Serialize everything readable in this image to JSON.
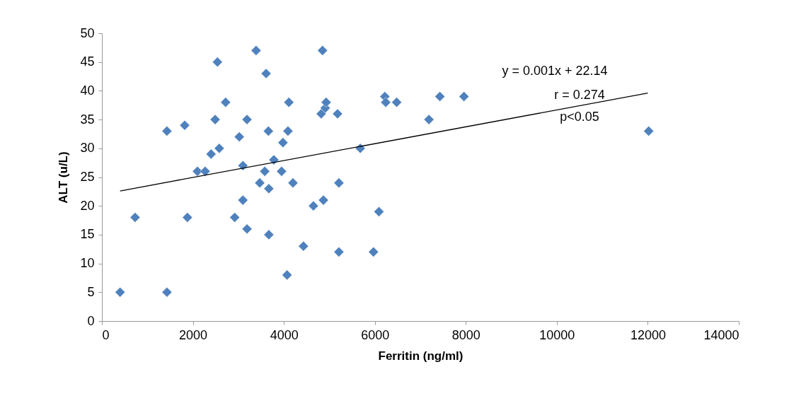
{
  "chart_data": {
    "type": "scatter",
    "xlabel": "Ferritin (ng/ml)",
    "ylabel": "ALT (u/L)",
    "x": [
      400,
      730,
      1430,
      1430,
      1820,
      1880,
      2100,
      2270,
      2400,
      2490,
      2540,
      2580,
      2720,
      2920,
      3020,
      3100,
      3100,
      3190,
      3190,
      3390,
      3470,
      3580,
      3610,
      3660,
      3670,
      3670,
      3780,
      3950,
      3980,
      4070,
      4090,
      4110,
      4200,
      4430,
      4650,
      4820,
      4850,
      4870,
      4910,
      4930,
      5180,
      5210,
      5210,
      5680,
      5970,
      6090,
      6220,
      6240,
      6480,
      7190,
      7430,
      7960,
      12020
    ],
    "series": [
      {
        "color": "#4f81bd",
        "marker": "diamond",
        "values": [
          5,
          18,
          33,
          5,
          34,
          18,
          26,
          26,
          29,
          35,
          45,
          30,
          38,
          18,
          32,
          27,
          21,
          35,
          16,
          47,
          24,
          26,
          43,
          33,
          23,
          15,
          28,
          26,
          31,
          8,
          33,
          38,
          24,
          13,
          20,
          36,
          47,
          21,
          37,
          38,
          36,
          24,
          12,
          30,
          12,
          19,
          39,
          38,
          38,
          35,
          39,
          39,
          33
        ]
      },
      {
        "type": "line",
        "color": "#000000",
        "x": [
          400,
          12000
        ],
        "values": [
          22.6,
          39.6
        ]
      }
    ],
    "annotations": [
      "y = 0.001x + 22.14",
      "r = 0.274",
      "p<0.05"
    ],
    "xlim": [
      0,
      14000
    ],
    "xticks": [
      0,
      2000,
      4000,
      6000,
      8000,
      10000,
      12000,
      14000
    ],
    "ylim": [
      0,
      50
    ],
    "yticks": [
      0,
      5,
      10,
      15,
      20,
      25,
      30,
      35,
      40,
      45,
      50
    ],
    "grid": false
  }
}
